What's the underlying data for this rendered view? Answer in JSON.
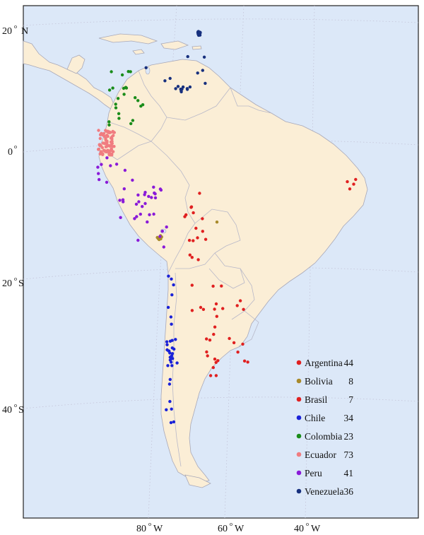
{
  "colors": {
    "ocean": "#dce8f8",
    "land": "#fbeed6",
    "land_focus": "#fbecd2",
    "border": "#b8b8c8",
    "coast": "#a8a8b8",
    "graticule": "#c4c4d8"
  },
  "axes": {
    "lat_labels": [
      {
        "deg": "20",
        "dir": "N"
      },
      {
        "deg": "0",
        "dir": ""
      },
      {
        "deg": "20",
        "dir": "S"
      },
      {
        "deg": "40",
        "dir": "S"
      }
    ],
    "lon_labels": [
      {
        "deg": "80",
        "dir": "W"
      },
      {
        "deg": "60",
        "dir": "W"
      },
      {
        "deg": "40",
        "dir": "W"
      }
    ]
  },
  "legend": [
    {
      "country": "Argentina",
      "count": "44",
      "color": "#e02020"
    },
    {
      "country": "Bolivia",
      "count": "8",
      "color": "#a88a2a"
    },
    {
      "country": "Brasil",
      "count": "7",
      "color": "#e02020"
    },
    {
      "country": "Chile",
      "count": "34",
      "color": "#1a22d8"
    },
    {
      "country": "Colombia",
      "count": "23",
      "color": "#1a8c1a"
    },
    {
      "country": "Ecuador",
      "count": "73",
      "color": "#f07c80"
    },
    {
      "country": "Peru",
      "count": "41",
      "color": "#8a1ad8"
    },
    {
      "country": "Venezuela",
      "count": "36",
      "color": "#17307e"
    }
  ]
}
